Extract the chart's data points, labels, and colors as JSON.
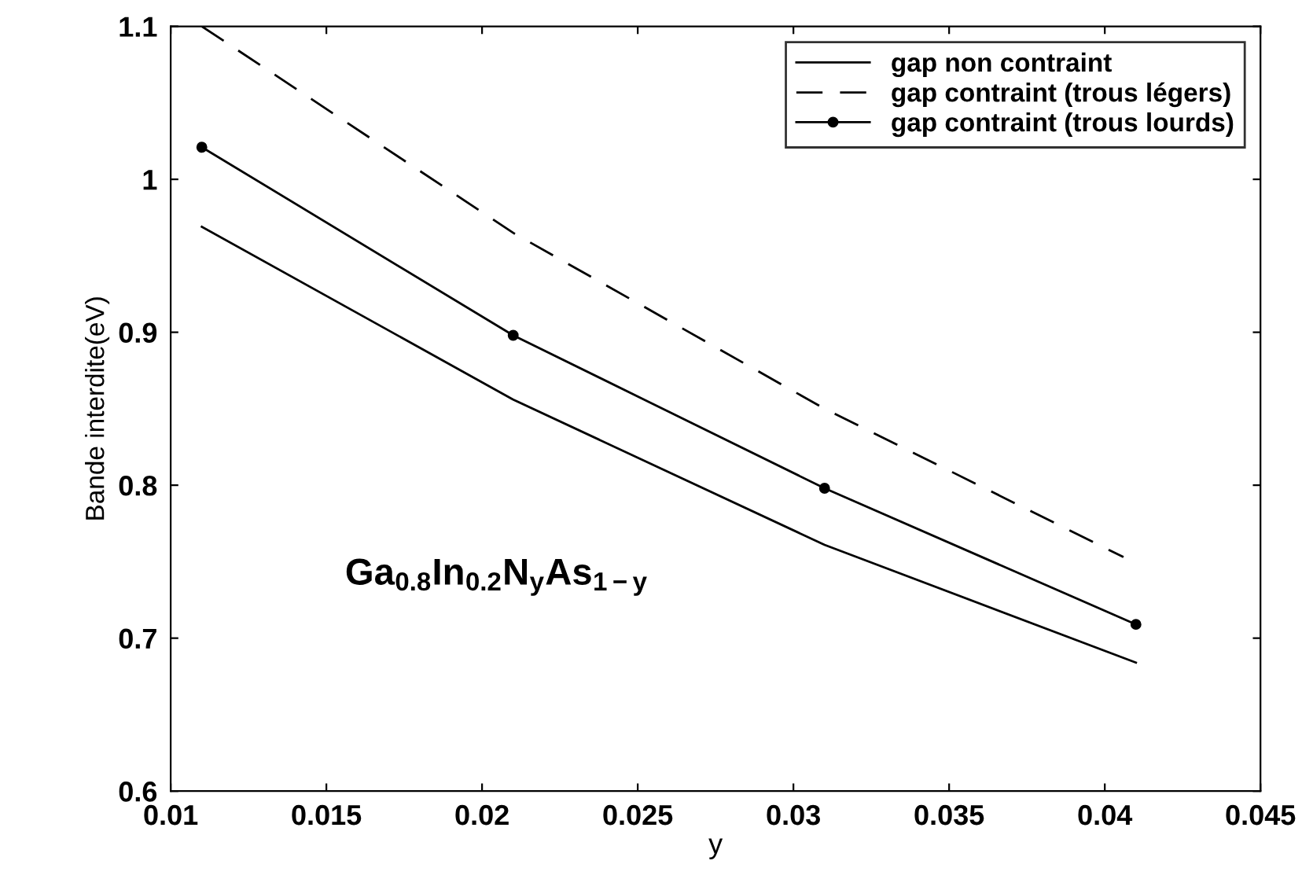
{
  "chart_data": {
    "type": "line",
    "xlabel": "y",
    "ylabel": "Bande interdite(eV)",
    "xlim": [
      0.01,
      0.045
    ],
    "xticks": [
      0.01,
      0.015,
      0.02,
      0.025,
      0.03,
      0.035,
      0.04,
      0.045
    ],
    "ylim": [
      0.6,
      1.1
    ],
    "yticks": [
      0.6,
      0.7,
      0.8,
      0.9,
      1,
      1.1
    ],
    "grid": false,
    "legend": "top right",
    "series": [
      {
        "name": "gap non contraint",
        "color": "#000000",
        "line_style": "solid",
        "marker": "none",
        "x": [
          0.011,
          0.021,
          0.031,
          0.041
        ],
        "values": [
          0.969,
          0.856,
          0.761,
          0.684
        ]
      },
      {
        "name": "gap contraint (trous légers)",
        "color": "#000000",
        "line_style": "dashed",
        "marker": "none",
        "x": [
          0.011,
          0.021,
          0.031,
          0.0406
        ],
        "values": [
          1.1,
          0.965,
          0.85,
          0.753
        ]
      },
      {
        "name": "gap contraint (trous lourds)",
        "color": "#000000",
        "line_style": "solid",
        "marker": "circle",
        "x": [
          0.011,
          0.021,
          0.031,
          0.041
        ],
        "values": [
          1.021,
          0.898,
          0.798,
          0.709
        ]
      }
    ],
    "annotations": [
      "Ga$_{0.8}$In$_{0.2}$N$_{y}$As$_{1−y}$"
    ]
  }
}
